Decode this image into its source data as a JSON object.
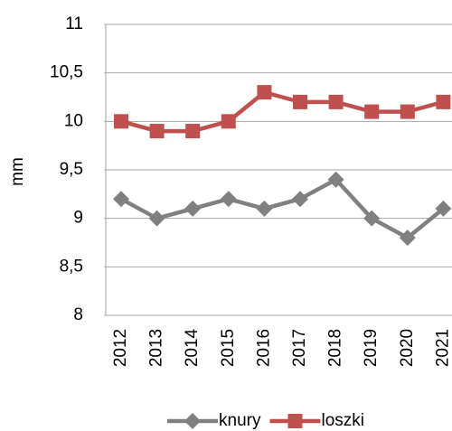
{
  "chart_data": {
    "type": "line",
    "y_label": "mm",
    "categories": [
      "2012",
      "2013",
      "2014",
      "2015",
      "2016",
      "2017",
      "2018",
      "2019",
      "2020",
      "2021"
    ],
    "series": [
      {
        "name": "knury",
        "color": "#808080",
        "marker": "diamond",
        "values": [
          9.2,
          9.0,
          9.1,
          9.2,
          9.1,
          9.2,
          9.4,
          9.0,
          8.8,
          9.1
        ]
      },
      {
        "name": "loszki",
        "color": "#c0504d",
        "marker": "square",
        "values": [
          10.0,
          9.9,
          9.9,
          10.0,
          10.3,
          10.2,
          10.2,
          10.1,
          10.1,
          10.2
        ]
      }
    ],
    "ylim": [
      8,
      11
    ],
    "yticks": [
      8,
      {
        "value": 8.5,
        "label": "8,5"
      },
      9,
      {
        "value": 9.5,
        "label": "9,5"
      },
      10,
      {
        "value": 10.5,
        "label": "10,5"
      },
      11
    ],
    "grid": true,
    "legend": "bottom"
  }
}
